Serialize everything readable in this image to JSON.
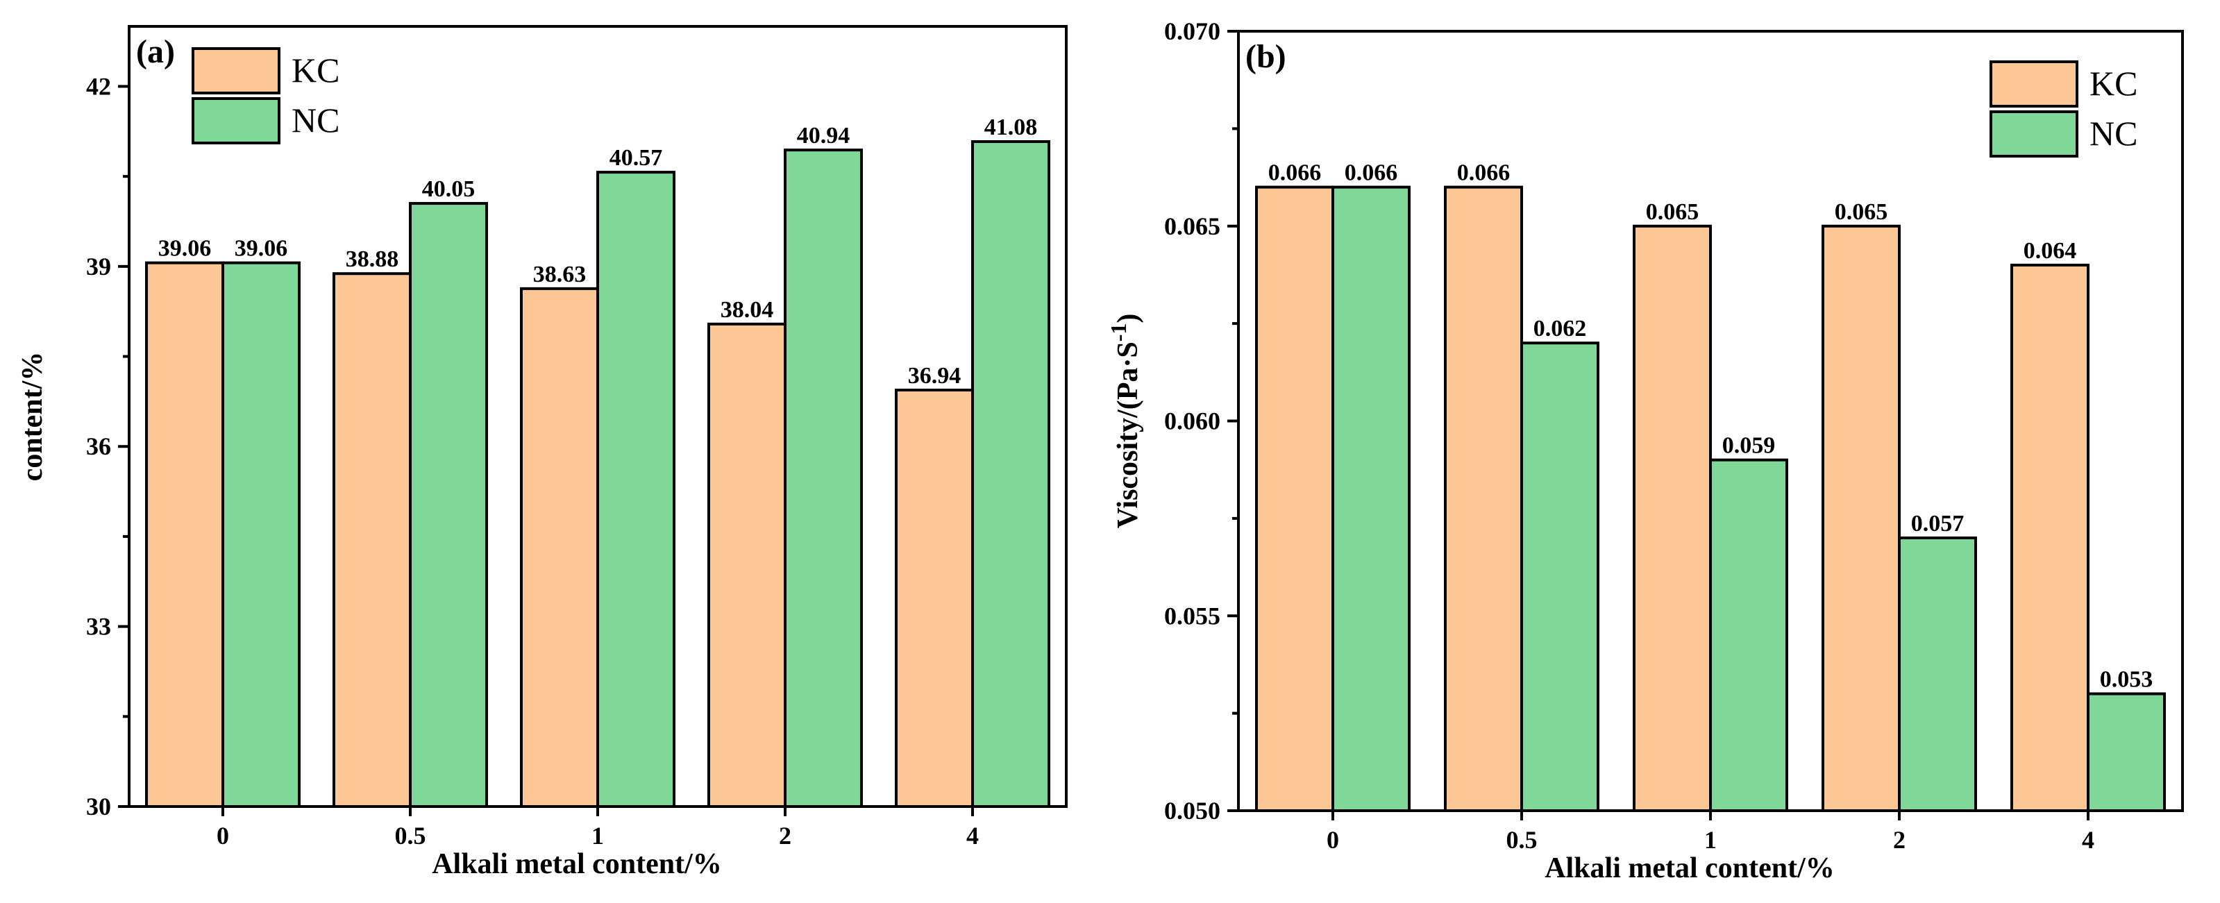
{
  "chart_data": [
    {
      "type": "bar",
      "panel_label": "(a)",
      "categories": [
        "0",
        "0.5",
        "1",
        "2",
        "4"
      ],
      "series": [
        {
          "name": "KC",
          "color": "#FCC795",
          "values": [
            39.06,
            38.88,
            38.63,
            38.04,
            36.94
          ]
        },
        {
          "name": "NC",
          "color": "#80D898",
          "values": [
            39.06,
            40.05,
            40.57,
            40.94,
            41.08
          ]
        }
      ],
      "data_labels": {
        "KC": [
          "39.06",
          "38.88",
          "38.63",
          "38.04",
          "36.94"
        ],
        "NC": [
          "39.06",
          "40.05",
          "40.57",
          "40.94",
          "41.08"
        ]
      },
      "xlabel": "Alkali metal content/%",
      "ylabel": "content/%",
      "ylim": [
        30,
        43
      ],
      "yticks": [
        30,
        33,
        36,
        39,
        42
      ],
      "ytick_labels": [
        "30",
        "33",
        "36",
        "39",
        "42"
      ],
      "legend_position": "top-left"
    },
    {
      "type": "bar",
      "panel_label": "(b)",
      "categories": [
        "0",
        "0.5",
        "1",
        "2",
        "4"
      ],
      "series": [
        {
          "name": "KC",
          "color": "#FCC795",
          "values": [
            0.066,
            0.066,
            0.065,
            0.065,
            0.064
          ]
        },
        {
          "name": "NC",
          "color": "#80D898",
          "values": [
            0.066,
            0.062,
            0.059,
            0.057,
            0.053
          ]
        }
      ],
      "data_labels": {
        "KC": [
          "0.066",
          "0.066",
          "0.065",
          "0.065",
          "0.064"
        ],
        "NC": [
          "0.066",
          "0.062",
          "0.059",
          "0.057",
          "0.053"
        ]
      },
      "xlabel": "Alkali metal content/%",
      "ylabel_main": "Viscosity/(Pa·S",
      "ylabel_sup": "-1",
      "ylabel_close": ")",
      "ylim": [
        0.05,
        0.07
      ],
      "yticks": [
        0.05,
        0.055,
        0.06,
        0.065,
        0.07
      ],
      "ytick_labels": [
        "0.050",
        "0.055",
        "0.060",
        "0.065",
        "0.070"
      ],
      "legend_position": "top-right"
    }
  ]
}
